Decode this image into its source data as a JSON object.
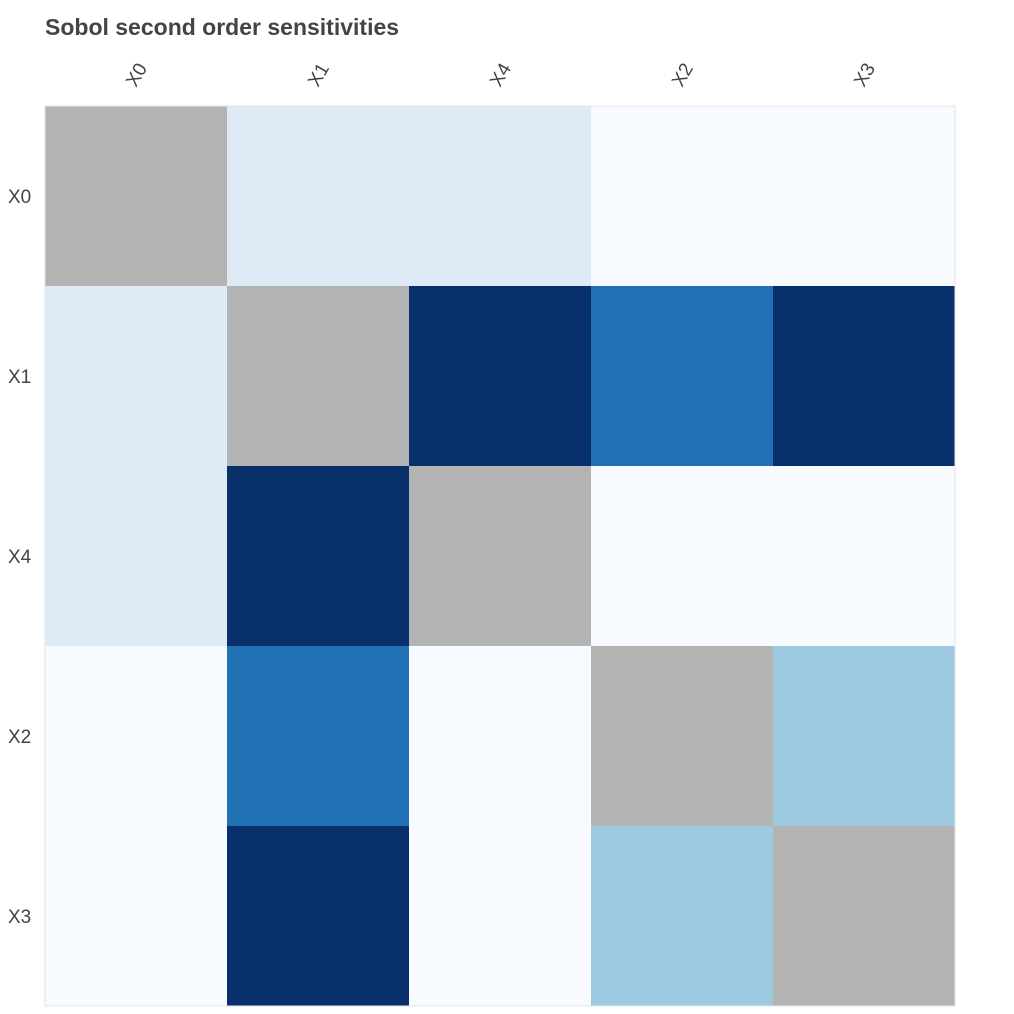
{
  "chart_data": {
    "type": "heatmap",
    "title": "Sobol second order sensitivities",
    "x_categories": [
      "X0",
      "X1",
      "X4",
      "X2",
      "X3"
    ],
    "y_categories": [
      "X0",
      "X1",
      "X4",
      "X2",
      "X3"
    ],
    "diagonal_color": "#b3b3b3",
    "colorscale": "Blues",
    "values": [
      [
        null,
        0.15,
        0.15,
        0.0,
        0.0
      ],
      [
        0.15,
        null,
        1.0,
        0.65,
        1.0
      ],
      [
        0.15,
        1.0,
        null,
        0.0,
        0.0
      ],
      [
        0.0,
        0.65,
        0.0,
        null,
        0.38
      ],
      [
        0.0,
        1.0,
        0.0,
        0.38,
        null
      ]
    ],
    "grid": false,
    "legend": "none"
  }
}
